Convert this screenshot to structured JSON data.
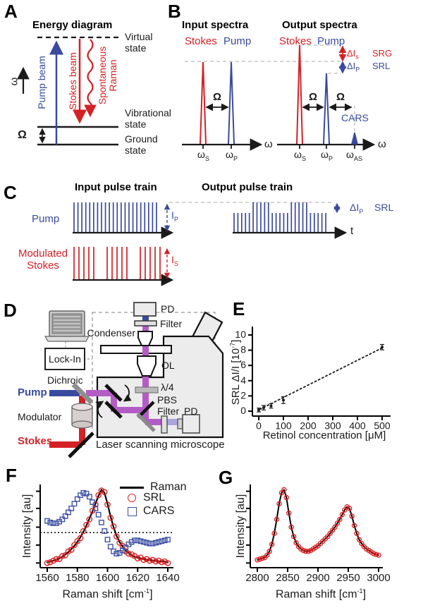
{
  "figure": {
    "bg": "#ffffff",
    "colors": {
      "red": "#d42125",
      "blue": "#3a4a9e",
      "purple": "#b45cc5",
      "lavender": "#a9a6dd",
      "gray": "#b9b9b9",
      "body": "#ececec",
      "dark": "#1a1a1a"
    }
  },
  "panelA": {
    "label": "A",
    "title": "Energy diagram",
    "omega_axis": "ω",
    "omega_gap": "Ω",
    "pump_beam": "Pump beam",
    "stokes_beam": "Stokes beam",
    "spontaneous_line1": "Spontaneous",
    "spontaneous_line2": "Raman",
    "virtual_line1": "Virtual",
    "virtual_line2": "state",
    "vibrational_line1": "Vibrational",
    "vibrational_line2": "state",
    "ground_line1": "Ground",
    "ground_line2": "state"
  },
  "panelB": {
    "label": "B",
    "input_title": "Input spectra",
    "output_title": "Output spectra",
    "stokes": "Stokes",
    "pump": "Pump",
    "omega_sym": "ω",
    "omega_gap": "Ω",
    "sub_s": "S",
    "sub_p": "P",
    "sub_as": "AS",
    "delta_i": "ΔI",
    "sub_s_small": "s",
    "sub_p_small": "P",
    "srg": "SRG",
    "srl": "SRL",
    "cars": "CARS"
  },
  "panelC": {
    "label": "C",
    "input_title": "Input pulse train",
    "output_title": "Output pulse train",
    "pump": "Pump",
    "modulated_line1": "Modulated",
    "modulated_line2": "Stokes",
    "intensity": "I",
    "sub_p": "P",
    "sub_s": "S",
    "delta_i": "ΔI",
    "srl": "SRL",
    "time": "t",
    "input_pulse_count": 22,
    "stokes_burst_count": 3,
    "stokes_pulses_per_burst": 5,
    "output_pattern": [
      0,
      0,
      0,
      0,
      0,
      1,
      1,
      1,
      1,
      1,
      0,
      0,
      0,
      0,
      0,
      1,
      1,
      1,
      1,
      1,
      0,
      0,
      0,
      0,
      0
    ]
  },
  "panelD": {
    "label": "D",
    "lock_in": "Lock-In",
    "dichroic": "Dichroic",
    "pump": "Pump",
    "modulator": "Modulator",
    "stokes": "Stokes",
    "pd_top": "PD",
    "filter_top": "Filter",
    "condenser": "Condenser",
    "objective": "OL",
    "quarter_wave": "λ/4",
    "pbs": "PBS",
    "filter_side": "Filter",
    "pd_side": "PD",
    "caption": "Laser scanning microscope"
  },
  "panelE": {
    "label": "E",
    "ylabel_pre": "SRL ΔI/I [10",
    "ylabel_exp": "-7",
    "ylabel_post": "]",
    "xlabel": "Retinol concentration [μM]"
  },
  "panelF": {
    "label": "F",
    "legend": [
      "Raman",
      "SRL",
      "CARS"
    ],
    "ylabel": "Intensity [au]",
    "xlabel_pre": "Raman shift [cm",
    "xlabel_exp": "-1",
    "xlabel_post": "]"
  },
  "panelG": {
    "label": "G",
    "ylabel": "Intensity [au]",
    "xlabel_pre": "Raman shift [cm",
    "xlabel_exp": "-1",
    "xlabel_post": "]"
  },
  "chart_data": [
    {
      "id": "E",
      "type": "scatter",
      "xlabel": "Retinol concentration [μM]",
      "ylabel": "SRL ΔI/I [10⁻⁷]",
      "xlim": [
        0,
        500
      ],
      "ylim": [
        0,
        10
      ],
      "xticks": [
        0,
        100,
        200,
        300,
        400,
        500
      ],
      "yticks": [
        0,
        2,
        4,
        6,
        8,
        10
      ],
      "tick_font": 14,
      "yext": 12,
      "overhang": 12,
      "series": [
        {
          "name": "linear-fit",
          "x": [
            5,
            500
          ],
          "y": [
            0.25,
            8.3
          ],
          "line": true,
          "dash": "2.2,3.6",
          "width": 1.8,
          "color": "#1a1a1a"
        },
        {
          "name": "measurements",
          "x": [
            0,
            20,
            50,
            100,
            500
          ],
          "y": [
            0.15,
            0.45,
            0.7,
            1.45,
            8.4
          ],
          "err": [
            0.25,
            0.3,
            0.3,
            0.45,
            0.35
          ],
          "color": "#1a1a1a"
        }
      ]
    },
    {
      "id": "F",
      "type": "line",
      "xlabel": "Raman shift [cm⁻¹]",
      "ylabel": "Intensity [au]",
      "xlim": [
        1560,
        1640
      ],
      "ylim": [
        0,
        1.04
      ],
      "xticks": [
        1560,
        1580,
        1600,
        1620,
        1640
      ],
      "yticks": [
        0.06,
        0.29,
        0.52,
        0.76,
        0.98
      ],
      "ytick_labels": false,
      "hline": 0.45,
      "tick_font": 15,
      "yext": 3,
      "overhang": 8,
      "legend": [
        "Raman",
        "SRL",
        "CARS"
      ],
      "series": [
        {
          "name": "Raman",
          "line": true,
          "width": 2.2,
          "color": "#000000",
          "x": [
            1560,
            1562,
            1564,
            1566,
            1568,
            1570,
            1572,
            1574,
            1576,
            1578,
            1580,
            1582,
            1584,
            1586,
            1588,
            1590,
            1592,
            1594,
            1596,
            1598,
            1600,
            1602,
            1604,
            1606,
            1608,
            1610,
            1612,
            1614,
            1616,
            1618,
            1620,
            1622,
            1624,
            1626,
            1628,
            1630,
            1632,
            1634,
            1636,
            1638,
            1640
          ],
          "y": [
            0.07,
            0.08,
            0.09,
            0.1,
            0.12,
            0.14,
            0.17,
            0.2,
            0.24,
            0.28,
            0.33,
            0.39,
            0.46,
            0.54,
            0.63,
            0.72,
            0.82,
            0.92,
            1.0,
            0.96,
            0.82,
            0.66,
            0.52,
            0.41,
            0.33,
            0.27,
            0.22,
            0.19,
            0.16,
            0.14,
            0.13,
            0.12,
            0.11,
            0.1,
            0.1,
            0.09,
            0.09,
            0.08,
            0.08,
            0.08,
            0.07
          ]
        },
        {
          "name": "SRL",
          "marker": "circle",
          "size": 3.6,
          "color": "#e02325",
          "x": [
            1560,
            1562,
            1564,
            1566,
            1568,
            1570,
            1572,
            1574,
            1576,
            1578,
            1580,
            1582,
            1584,
            1586,
            1588,
            1590,
            1592,
            1594,
            1596,
            1598,
            1600,
            1602,
            1604,
            1606,
            1608,
            1610,
            1612,
            1614,
            1616,
            1618,
            1620,
            1622,
            1624,
            1626,
            1628,
            1630,
            1632,
            1634,
            1636,
            1638,
            1640
          ],
          "y": [
            0.06,
            0.07,
            0.09,
            0.11,
            0.11,
            0.15,
            0.16,
            0.21,
            0.23,
            0.29,
            0.34,
            0.38,
            0.47,
            0.55,
            0.62,
            0.73,
            0.81,
            0.93,
            0.99,
            0.97,
            0.81,
            0.64,
            0.53,
            0.4,
            0.32,
            0.28,
            0.21,
            0.18,
            0.17,
            0.15,
            0.12,
            0.13,
            0.1,
            0.11,
            0.09,
            0.1,
            0.08,
            0.09,
            0.07,
            0.08,
            0.06
          ]
        },
        {
          "name": "CARS",
          "marker": "square",
          "size": 3.2,
          "color": "#3f51a5",
          "x": [
            1560,
            1562,
            1564,
            1566,
            1568,
            1570,
            1572,
            1574,
            1576,
            1578,
            1580,
            1582,
            1584,
            1586,
            1588,
            1590,
            1592,
            1594,
            1596,
            1598,
            1600,
            1602,
            1604,
            1606,
            1608,
            1610,
            1612,
            1614,
            1616,
            1618,
            1620,
            1622,
            1624,
            1626,
            1628,
            1630,
            1632,
            1634,
            1636,
            1638,
            1640
          ],
          "y": [
            0.6,
            0.58,
            0.57,
            0.57,
            0.59,
            0.62,
            0.66,
            0.71,
            0.76,
            0.82,
            0.88,
            0.93,
            0.96,
            0.95,
            0.91,
            0.84,
            0.76,
            0.68,
            0.58,
            0.47,
            0.36,
            0.27,
            0.21,
            0.18,
            0.19,
            0.22,
            0.26,
            0.3,
            0.33,
            0.35,
            0.35,
            0.34,
            0.33,
            0.32,
            0.31,
            0.31,
            0.32,
            0.33,
            0.34,
            0.35,
            0.36
          ]
        }
      ]
    },
    {
      "id": "G",
      "type": "line",
      "xlabel": "Raman shift [cm⁻¹]",
      "ylabel": "Intensity [au]",
      "xlim": [
        2800,
        3000
      ],
      "ylim": [
        0,
        1.04
      ],
      "xticks": [
        2800,
        2850,
        2900,
        2950,
        3000
      ],
      "yticks": [
        0.06,
        0.29,
        0.52,
        0.76,
        0.98
      ],
      "ytick_labels": false,
      "tick_font": 15,
      "yext": 3,
      "overhang": 6,
      "series": [
        {
          "name": "Raman",
          "line": true,
          "width": 2,
          "color": "#000000",
          "x": [
            2800,
            2804,
            2808,
            2812,
            2816,
            2820,
            2824,
            2828,
            2832,
            2836,
            2840,
            2844,
            2848,
            2852,
            2856,
            2860,
            2864,
            2868,
            2872,
            2876,
            2880,
            2884,
            2888,
            2892,
            2896,
            2900,
            2904,
            2908,
            2912,
            2916,
            2920,
            2924,
            2928,
            2932,
            2936,
            2940,
            2944,
            2948,
            2952,
            2956,
            2960,
            2964,
            2968,
            2972,
            2976,
            2980,
            2984,
            2988,
            2992,
            2996,
            3000
          ],
          "y": [
            0.1,
            0.11,
            0.12,
            0.13,
            0.16,
            0.21,
            0.3,
            0.44,
            0.62,
            0.82,
            0.96,
            1.0,
            0.9,
            0.7,
            0.52,
            0.4,
            0.32,
            0.27,
            0.24,
            0.22,
            0.21,
            0.21,
            0.22,
            0.24,
            0.26,
            0.28,
            0.31,
            0.34,
            0.37,
            0.4,
            0.44,
            0.48,
            0.52,
            0.57,
            0.62,
            0.68,
            0.74,
            0.78,
            0.76,
            0.66,
            0.54,
            0.44,
            0.36,
            0.31,
            0.27,
            0.24,
            0.22,
            0.2,
            0.18,
            0.17,
            0.16
          ]
        },
        {
          "name": "SRL",
          "marker": "circle",
          "size": 3,
          "color": "#e02325",
          "x": [
            2800,
            2804,
            2808,
            2812,
            2816,
            2820,
            2824,
            2828,
            2832,
            2836,
            2840,
            2844,
            2848,
            2852,
            2856,
            2860,
            2864,
            2868,
            2872,
            2876,
            2880,
            2884,
            2888,
            2892,
            2896,
            2900,
            2904,
            2908,
            2912,
            2916,
            2920,
            2924,
            2928,
            2932,
            2936,
            2940,
            2944,
            2948,
            2952,
            2956,
            2960,
            2964,
            2968,
            2972,
            2976,
            2980,
            2984,
            2988,
            2992,
            2996,
            3000
          ],
          "y": [
            0.1,
            0.11,
            0.12,
            0.13,
            0.16,
            0.21,
            0.3,
            0.44,
            0.62,
            0.82,
            0.96,
            1.0,
            0.9,
            0.7,
            0.52,
            0.4,
            0.32,
            0.27,
            0.24,
            0.22,
            0.21,
            0.21,
            0.22,
            0.24,
            0.26,
            0.28,
            0.31,
            0.34,
            0.37,
            0.4,
            0.44,
            0.48,
            0.52,
            0.57,
            0.62,
            0.68,
            0.74,
            0.78,
            0.76,
            0.66,
            0.54,
            0.44,
            0.36,
            0.31,
            0.27,
            0.24,
            0.22,
            0.2,
            0.18,
            0.17,
            0.16
          ]
        }
      ]
    }
  ]
}
